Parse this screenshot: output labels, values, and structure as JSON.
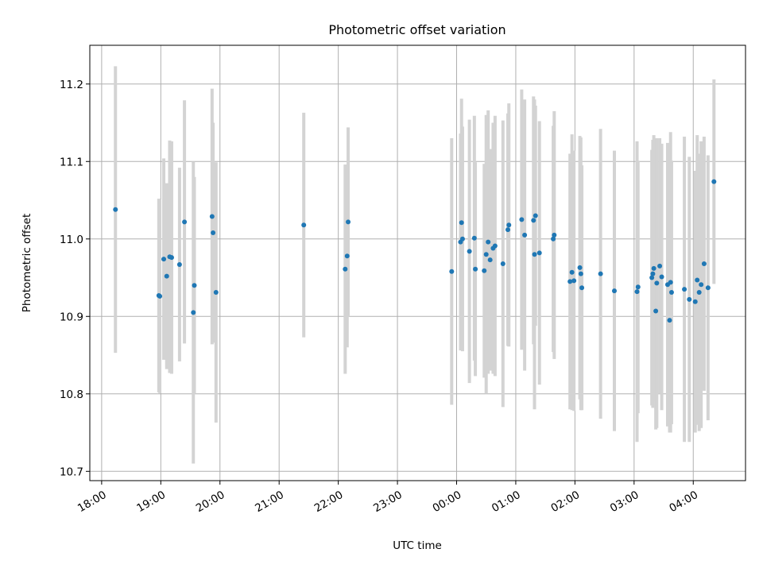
{
  "chart_data": {
    "type": "scatter",
    "title": "Photometric offset variation",
    "xlabel": "UTC time",
    "ylabel": "Photometric offset",
    "grid": true,
    "colors": {
      "points": "#1f77b4",
      "errorbars": "#d3d3d3",
      "grid": "#b0b0b0"
    },
    "xlim": [
      "17:48",
      "04:53"
    ],
    "ylim": [
      10.688,
      11.25
    ],
    "x_ticks": [
      "18:00",
      "19:00",
      "20:00",
      "21:00",
      "22:00",
      "23:00",
      "00:00",
      "01:00",
      "02:00",
      "03:00",
      "04:00"
    ],
    "y_ticks": [
      "10.7",
      "10.8",
      "10.9",
      "11.0",
      "11.1",
      "11.2"
    ],
    "series": [
      {
        "x": [
          "18:14",
          "18:58",
          "18:59",
          "19:03",
          "19:06",
          "19:09",
          "19:11",
          "19:19",
          "19:24",
          "19:33",
          "19:34",
          "19:52",
          "19:53",
          "19:56",
          "21:25",
          "22:07",
          "22:09",
          "22:10",
          "23:55",
          "00:04",
          "00:05",
          "00:06",
          "00:13",
          "00:18",
          "00:19",
          "00:28",
          "00:30",
          "00:32",
          "00:34",
          "00:37",
          "00:39",
          "00:47",
          "00:52",
          "00:53",
          "01:06",
          "01:09",
          "01:18",
          "01:19",
          "01:20",
          "01:24",
          "01:38",
          "01:39",
          "01:55",
          "01:57",
          "01:59",
          "02:05",
          "02:06",
          "02:07",
          "02:26",
          "02:40",
          "03:03",
          "03:04",
          "03:18",
          "03:19",
          "03:20",
          "03:22",
          "03:23",
          "03:26",
          "03:28",
          "03:34",
          "03:36",
          "03:37",
          "03:38",
          "03:51",
          "03:56",
          "04:02",
          "04:04",
          "04:06",
          "04:08",
          "04:11",
          "04:15",
          "04:21"
        ],
        "y": [
          11.038,
          10.927,
          10.926,
          10.974,
          10.952,
          10.977,
          10.976,
          10.967,
          11.022,
          10.905,
          10.94,
          11.029,
          11.008,
          10.931,
          11.018,
          10.961,
          10.978,
          11.022,
          10.958,
          10.996,
          11.021,
          11.0,
          10.984,
          11.001,
          10.961,
          10.959,
          10.98,
          10.996,
          10.973,
          10.988,
          10.991,
          10.968,
          11.012,
          11.018,
          11.025,
          11.005,
          11.024,
          10.98,
          11.03,
          10.982,
          11.0,
          11.005,
          10.945,
          10.957,
          10.946,
          10.963,
          10.955,
          10.937,
          10.955,
          10.933,
          10.932,
          10.938,
          10.95,
          10.955,
          10.962,
          10.907,
          10.943,
          10.965,
          10.951,
          10.941,
          10.895,
          10.944,
          10.931,
          10.935,
          10.922,
          10.919,
          10.947,
          10.931,
          10.941,
          10.968,
          10.937,
          11.074
        ],
        "err": [
          0.185,
          0.125,
          0.125,
          0.13,
          0.12,
          0.15,
          0.15,
          0.125,
          0.157,
          0.195,
          0.14,
          0.165,
          0.142,
          0.168,
          0.145,
          0.135,
          0.118,
          0.122,
          0.172,
          0.14,
          0.16,
          0.145,
          0.17,
          0.158,
          0.138,
          0.138,
          0.18,
          0.17,
          0.143,
          0.162,
          0.168,
          0.185,
          0.15,
          0.157,
          0.168,
          0.175,
          0.16,
          0.2,
          0.142,
          0.17,
          0.146,
          0.16,
          0.165,
          0.178,
          0.168,
          0.17,
          0.176,
          0.158,
          0.187,
          0.181,
          0.194,
          0.163,
          0.165,
          0.173,
          0.172,
          0.153,
          0.187,
          0.165,
          0.172,
          0.183,
          0.145,
          0.194,
          0.17,
          0.197,
          0.184,
          0.169,
          0.187,
          0.179,
          0.185,
          0.164,
          0.171,
          0.132
        ]
      }
    ]
  }
}
